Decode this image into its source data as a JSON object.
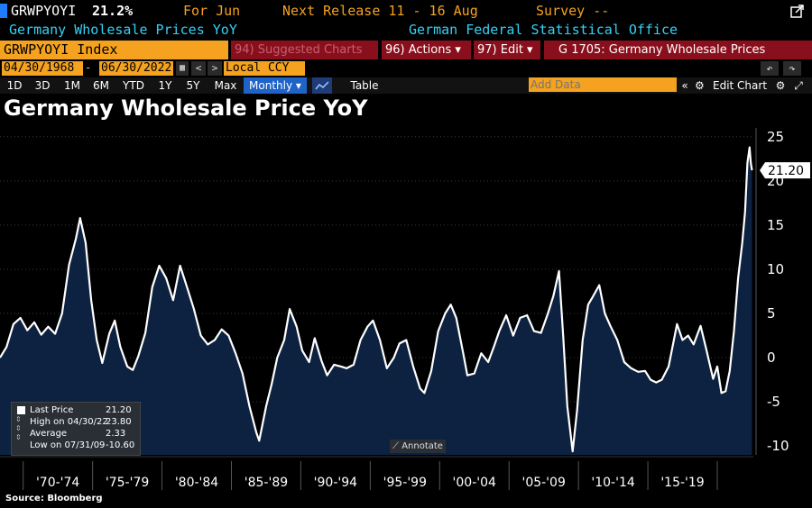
{
  "header": {
    "ticker": "GRWPYOYI",
    "last_value": "21.2%",
    "for_label": "For Jun",
    "next_release": "Next Release 11 - 16 Aug",
    "survey": "Survey --",
    "subtitle": "Germany Wholesale Prices YoY",
    "source_org": "German Federal Statistical Office"
  },
  "toolbar": {
    "security_field": "GRWPYOYI Index",
    "suggested": "94) Suggested Charts",
    "actions": "96) Actions ▾",
    "edit": "97) Edit ▾",
    "page_title": "G 1705: Germany Wholesale Prices",
    "start_date": "04/30/1968",
    "end_date": "06/30/2022",
    "currency": "Local CCY",
    "periods": [
      "1D",
      "3D",
      "1M",
      "6M",
      "YTD",
      "1Y",
      "5Y",
      "Max"
    ],
    "frequency": "Monthly ▾",
    "table_label": "Table",
    "add_data_placeholder": "Add Data",
    "edit_chart": "Edit Chart",
    "annotate": "Annotate"
  },
  "colors": {
    "orange": "#f4a21f",
    "cyan": "#35d0f5",
    "line": "#ffffff",
    "area": "#0d2140",
    "red": "#8a0f1c"
  },
  "icons": [
    "calendar-icon",
    "arrow-left-icon",
    "arrow-right-icon",
    "chart-line-icon",
    "gear-icon",
    "undo-icon",
    "redo-icon",
    "export-icon"
  ],
  "legend": {
    "last_price_label": "Last Price",
    "last_price": "21.20",
    "high_label": "High on 04/30/22",
    "high": "23.80",
    "average_label": "Average",
    "average": "2.33",
    "low_label": "Low on 07/31/09",
    "low": "-10.60"
  },
  "chart_data": {
    "type": "area",
    "title": "Germany Wholesale Price YoY",
    "x_labels": [
      "'70-'74",
      "'75-'79",
      "'80-'84",
      "'85-'89",
      "'90-'94",
      "'95-'99",
      "'00-'04",
      "'05-'09",
      "'10-'14",
      "'15-'19"
    ],
    "yticks": [
      -10,
      -5,
      0,
      5,
      10,
      15,
      20,
      25
    ],
    "ylim": [
      -11,
      26
    ],
    "xlim": [
      1968.33,
      2022.6
    ],
    "last_value_label": "21.20",
    "series": [
      {
        "points": [
          [
            1968.33,
            0
          ],
          [
            1968.8,
            1.2
          ],
          [
            1969.3,
            3.8
          ],
          [
            1969.8,
            4.5
          ],
          [
            1970.3,
            3.1
          ],
          [
            1970.8,
            4.0
          ],
          [
            1971.3,
            2.6
          ],
          [
            1971.8,
            3.5
          ],
          [
            1972.3,
            2.7
          ],
          [
            1972.8,
            5.0
          ],
          [
            1973.3,
            10.5
          ],
          [
            1973.8,
            13.5
          ],
          [
            1974.1,
            15.8
          ],
          [
            1974.5,
            13.0
          ],
          [
            1974.9,
            6.5
          ],
          [
            1975.3,
            2.0
          ],
          [
            1975.7,
            -0.6
          ],
          [
            1976.2,
            2.7
          ],
          [
            1976.6,
            4.2
          ],
          [
            1977.0,
            1.2
          ],
          [
            1977.5,
            -1.0
          ],
          [
            1977.9,
            -1.4
          ],
          [
            1978.3,
            0.2
          ],
          [
            1978.8,
            2.8
          ],
          [
            1979.3,
            8.0
          ],
          [
            1979.8,
            10.4
          ],
          [
            1980.3,
            9.0
          ],
          [
            1980.8,
            6.5
          ],
          [
            1981.3,
            10.4
          ],
          [
            1981.8,
            8.0
          ],
          [
            1982.3,
            5.5
          ],
          [
            1982.8,
            2.5
          ],
          [
            1983.3,
            1.5
          ],
          [
            1983.8,
            2.0
          ],
          [
            1984.3,
            3.2
          ],
          [
            1984.8,
            2.5
          ],
          [
            1985.3,
            0.5
          ],
          [
            1985.8,
            -1.8
          ],
          [
            1986.3,
            -5.5
          ],
          [
            1986.8,
            -8.5
          ],
          [
            1987.0,
            -9.4
          ],
          [
            1987.5,
            -5.5
          ],
          [
            1987.9,
            -3.0
          ],
          [
            1988.3,
            0.0
          ],
          [
            1988.8,
            2.0
          ],
          [
            1989.2,
            5.5
          ],
          [
            1989.7,
            3.5
          ],
          [
            1990.1,
            0.8
          ],
          [
            1990.6,
            -0.5
          ],
          [
            1991.0,
            2.2
          ],
          [
            1991.5,
            -0.4
          ],
          [
            1991.9,
            -2.0
          ],
          [
            1992.4,
            -0.8
          ],
          [
            1992.9,
            -1.0
          ],
          [
            1993.3,
            -1.2
          ],
          [
            1993.8,
            -0.8
          ],
          [
            1994.3,
            2.0
          ],
          [
            1994.8,
            3.5
          ],
          [
            1995.2,
            4.2
          ],
          [
            1995.7,
            2.0
          ],
          [
            1996.2,
            -1.2
          ],
          [
            1996.7,
            0.0
          ],
          [
            1997.1,
            1.6
          ],
          [
            1997.6,
            2.0
          ],
          [
            1998.1,
            -1.0
          ],
          [
            1998.6,
            -3.5
          ],
          [
            1998.9,
            -4.0
          ],
          [
            1999.4,
            -1.5
          ],
          [
            1999.9,
            3.0
          ],
          [
            2000.4,
            5.0
          ],
          [
            2000.8,
            6.0
          ],
          [
            2001.2,
            4.5
          ],
          [
            2001.7,
            0.5
          ],
          [
            2002.0,
            -2.0
          ],
          [
            2002.5,
            -1.8
          ],
          [
            2003.0,
            0.5
          ],
          [
            2003.5,
            -0.5
          ],
          [
            2003.9,
            1.2
          ],
          [
            2004.3,
            3.0
          ],
          [
            2004.8,
            4.8
          ],
          [
            2005.3,
            2.5
          ],
          [
            2005.8,
            4.5
          ],
          [
            2006.3,
            4.8
          ],
          [
            2006.8,
            3.0
          ],
          [
            2007.3,
            2.8
          ],
          [
            2007.8,
            5.0
          ],
          [
            2008.2,
            7.0
          ],
          [
            2008.6,
            9.8
          ],
          [
            2008.9,
            2.5
          ],
          [
            2009.2,
            -5.5
          ],
          [
            2009.58,
            -10.6
          ],
          [
            2009.9,
            -6.0
          ],
          [
            2010.3,
            2.0
          ],
          [
            2010.7,
            6.0
          ],
          [
            2011.0,
            6.8
          ],
          [
            2011.5,
            8.2
          ],
          [
            2011.9,
            5.0
          ],
          [
            2012.3,
            3.6
          ],
          [
            2012.8,
            2.0
          ],
          [
            2013.3,
            -0.5
          ],
          [
            2013.8,
            -1.2
          ],
          [
            2014.3,
            -1.6
          ],
          [
            2014.8,
            -1.5
          ],
          [
            2015.2,
            -2.5
          ],
          [
            2015.6,
            -2.8
          ],
          [
            2016.0,
            -2.5
          ],
          [
            2016.5,
            -1.0
          ],
          [
            2017.1,
            3.8
          ],
          [
            2017.5,
            2.0
          ],
          [
            2017.9,
            2.5
          ],
          [
            2018.3,
            1.5
          ],
          [
            2018.8,
            3.6
          ],
          [
            2019.2,
            1.0
          ],
          [
            2019.7,
            -2.4
          ],
          [
            2020.0,
            -1.0
          ],
          [
            2020.3,
            -4.0
          ],
          [
            2020.6,
            -3.8
          ],
          [
            2020.9,
            -1.5
          ],
          [
            2021.2,
            3.0
          ],
          [
            2021.5,
            9.0
          ],
          [
            2021.8,
            13.0
          ],
          [
            2022.0,
            16.5
          ],
          [
            2022.17,
            22.0
          ],
          [
            2022.33,
            23.8
          ],
          [
            2022.42,
            22.0
          ],
          [
            2022.5,
            21.2
          ]
        ]
      }
    ]
  },
  "source": "Source: Bloomberg"
}
